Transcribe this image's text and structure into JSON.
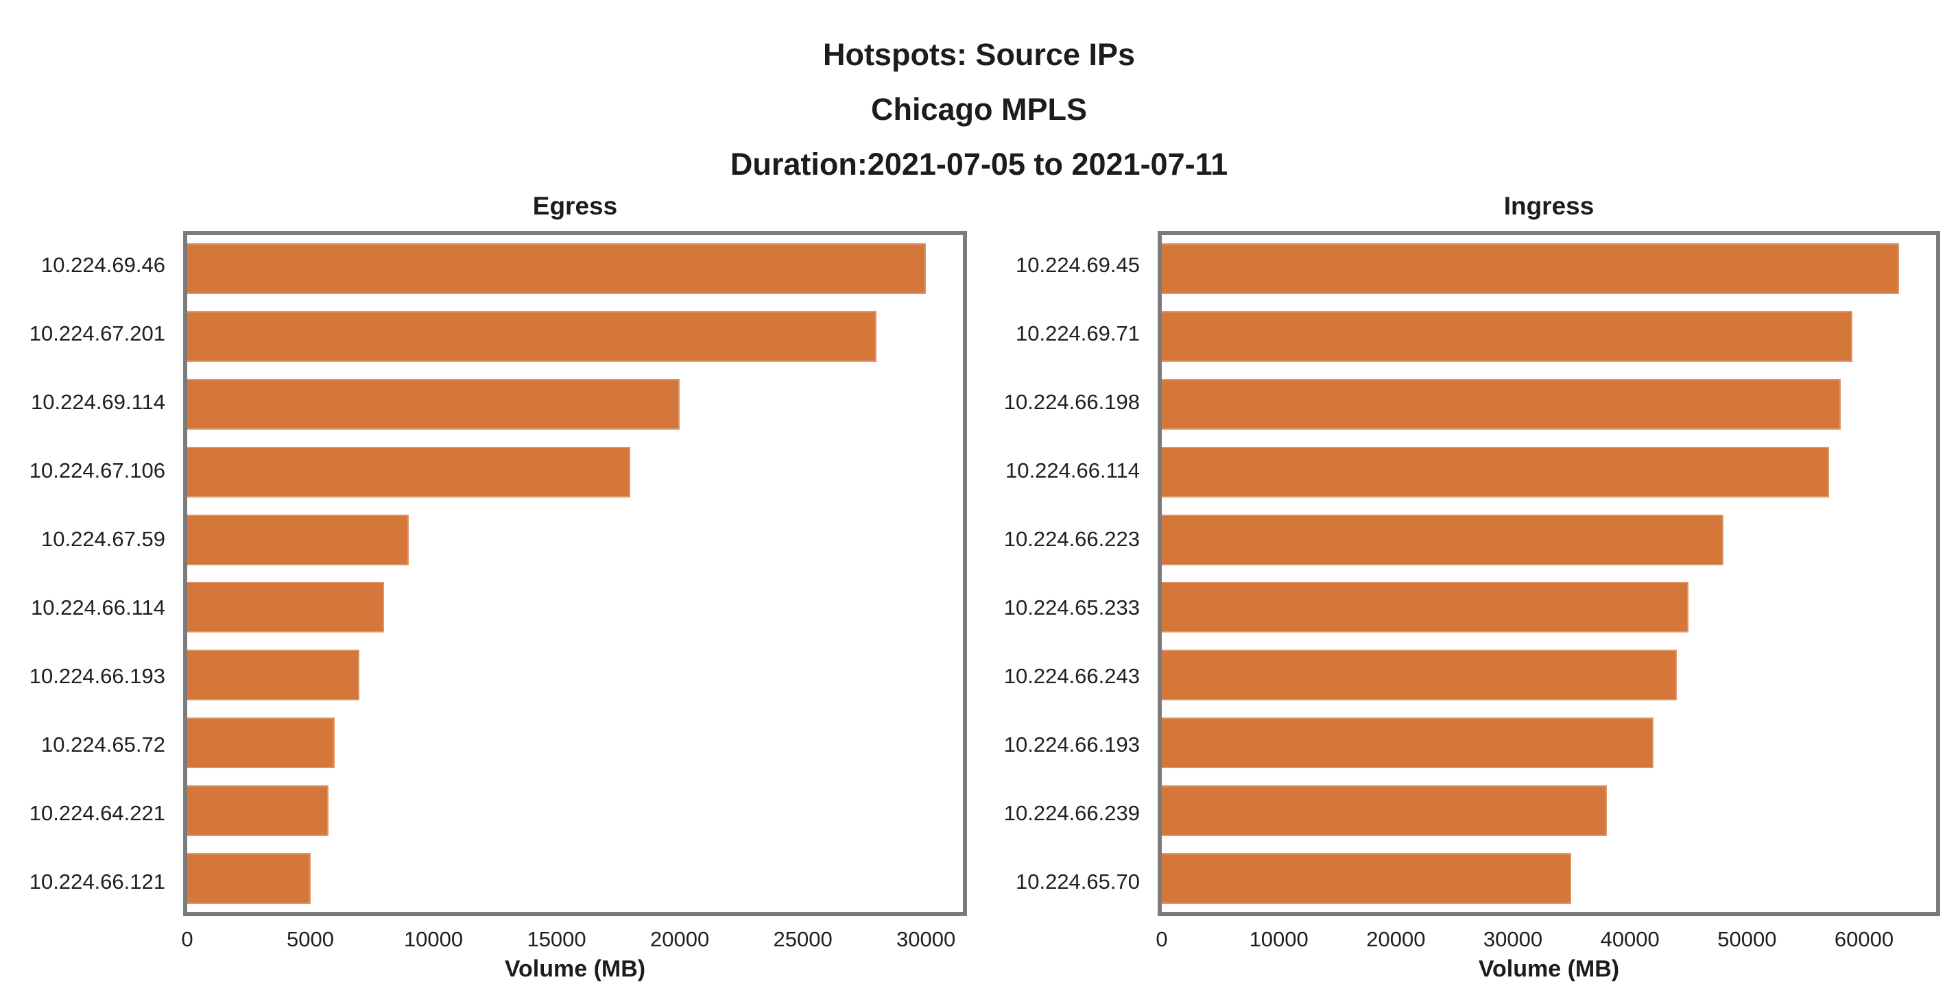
{
  "page": {
    "title_lines": [
      "Hotspots: Source IPs",
      "Chicago MPLS",
      "Duration:2021-07-05 to 2021-07-11"
    ]
  },
  "colors": {
    "bar_fill": "#d5763a",
    "bar_edge": "#dd9668",
    "spine": "#7b7b7b",
    "text": "#1c1c1c",
    "background": "#ffffff"
  },
  "chart_data": [
    {
      "type": "bar",
      "orientation": "horizontal",
      "title": "Egress",
      "xlabel": "Volume (MB)",
      "categories": [
        "10.224.69.46",
        "10.224.67.201",
        "10.224.69.114",
        "10.224.67.106",
        "10.224.67.59",
        "10.224.66.114",
        "10.224.66.193",
        "10.224.65.72",
        "10.224.64.221",
        "10.224.66.121"
      ],
      "values": [
        30000,
        28000,
        20000,
        18000,
        9000,
        8000,
        7000,
        6000,
        5750,
        5000
      ],
      "xlim": [
        0,
        31500
      ],
      "xticks": [
        0,
        5000,
        10000,
        15000,
        20000,
        25000,
        30000
      ],
      "grid": false,
      "legend": null
    },
    {
      "type": "bar",
      "orientation": "horizontal",
      "title": "Ingress",
      "xlabel": "Volume (MB)",
      "categories": [
        "10.224.69.45",
        "10.224.69.71",
        "10.224.66.198",
        "10.224.66.114",
        "10.224.66.223",
        "10.224.65.233",
        "10.224.66.243",
        "10.224.66.193",
        "10.224.66.239",
        "10.224.65.70"
      ],
      "values": [
        63000,
        59000,
        58000,
        57000,
        48000,
        45000,
        44000,
        42000,
        38000,
        35000
      ],
      "xlim": [
        0,
        66150
      ],
      "xticks": [
        0,
        10000,
        20000,
        30000,
        40000,
        50000,
        60000
      ],
      "grid": false,
      "legend": null
    }
  ]
}
